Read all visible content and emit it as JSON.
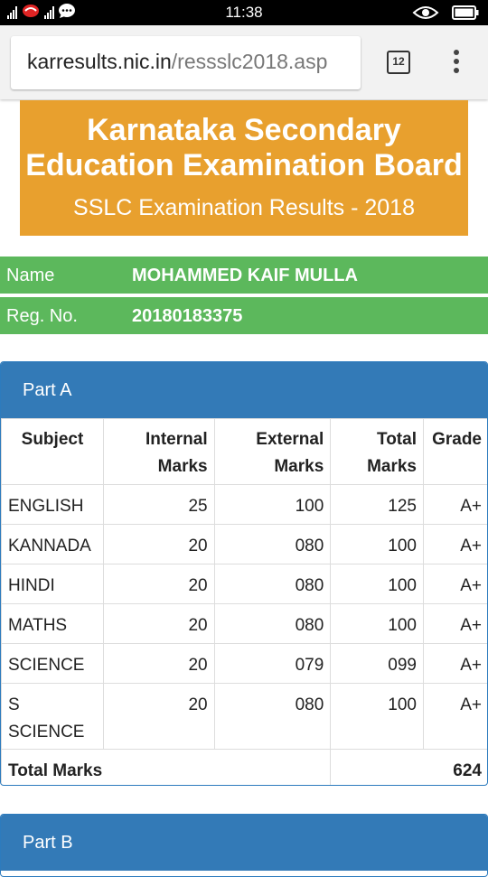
{
  "status_bar": {
    "time": "11:38",
    "icons": [
      "signal-icon",
      "app-notification-icon",
      "signal-icon",
      "chat-icon",
      "eye-icon",
      "battery-icon"
    ]
  },
  "browser": {
    "url_host": "karresults.nic.in",
    "url_path": "/ressslc2018.asp",
    "tab_count": "12"
  },
  "header": {
    "title_line1": "Karnataka Secondary",
    "title_line2": "Education Examination Board",
    "subtitle": "SSLC Examination Results - 2018",
    "bg_color": "#e8a02e"
  },
  "student": {
    "name_label": "Name",
    "name_value": "MOHAMMED KAIF MULLA",
    "reg_label": "Reg. No.",
    "reg_value": "20180183375",
    "bg_color": "#5cb85c"
  },
  "part_a": {
    "title": "Part A",
    "headers": {
      "subject": "Subject",
      "internal_1": "Internal",
      "internal_2": "Marks",
      "external_1": "External",
      "external_2": "Marks",
      "total_1": "Total",
      "total_2": "Marks",
      "grade": "Grade"
    },
    "rows": [
      {
        "subject": "ENGLISH",
        "internal": "25",
        "external": "100",
        "total": "125",
        "grade": "A+"
      },
      {
        "subject": "KANNADA",
        "internal": "20",
        "external": "080",
        "total": "100",
        "grade": "A+"
      },
      {
        "subject": "HINDI",
        "internal": "20",
        "external": "080",
        "total": "100",
        "grade": "A+"
      },
      {
        "subject": "MATHS",
        "internal": "20",
        "external": "080",
        "total": "100",
        "grade": "A+"
      },
      {
        "subject": "SCIENCE",
        "internal": "20",
        "external": "079",
        "total": "099",
        "grade": "A+"
      },
      {
        "subject_1": "S",
        "subject_2": "SCIENCE",
        "internal": "20",
        "external": "080",
        "total": "100",
        "grade": "A+"
      }
    ],
    "total_label": "Total Marks",
    "total_value": "624"
  },
  "part_b": {
    "title": "Part B"
  },
  "colors": {
    "panel_heading": "#337ab7"
  }
}
